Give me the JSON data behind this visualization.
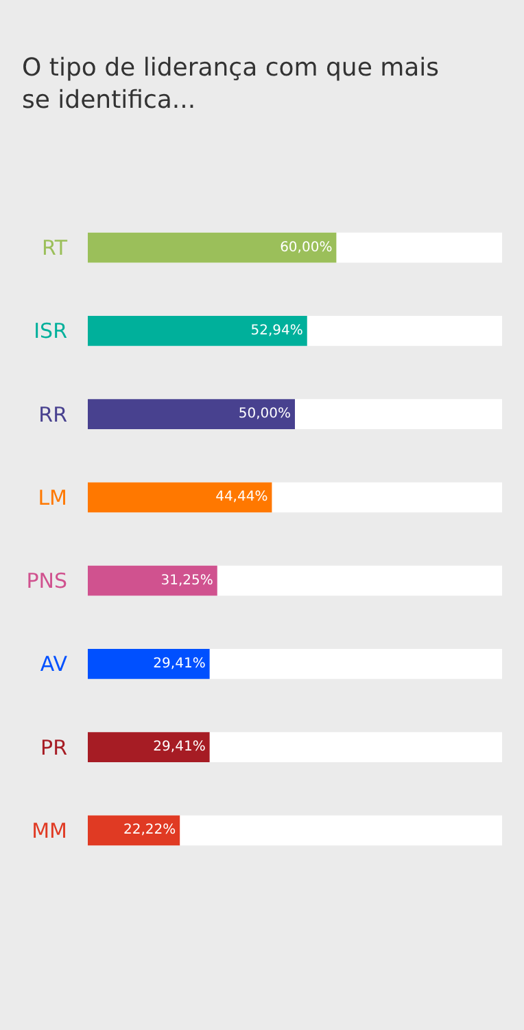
{
  "chart_data": {
    "type": "bar",
    "orientation": "horizontal",
    "title": "O tipo de liderança com que mais\nse identifica...",
    "categories": [
      "RT",
      "ISR",
      "RR",
      "LM",
      "PNS",
      "AV",
      "PR",
      "MM"
    ],
    "values": [
      60.0,
      52.94,
      50.0,
      44.44,
      31.25,
      29.41,
      29.41,
      22.22
    ],
    "colors": [
      "#9bbf5a",
      "#00b09b",
      "#48418f",
      "#ff7800",
      "#d0528f",
      "#0050ff",
      "#a61c24",
      "#e03a23"
    ],
    "value_labels": [
      "60,00%",
      "52,94%",
      "50,00%",
      "44,44%",
      "31,25%",
      "29,41%",
      "29,41%",
      "22,22%"
    ],
    "xlim": [
      0,
      100
    ],
    "tick_labels": "y"
  }
}
